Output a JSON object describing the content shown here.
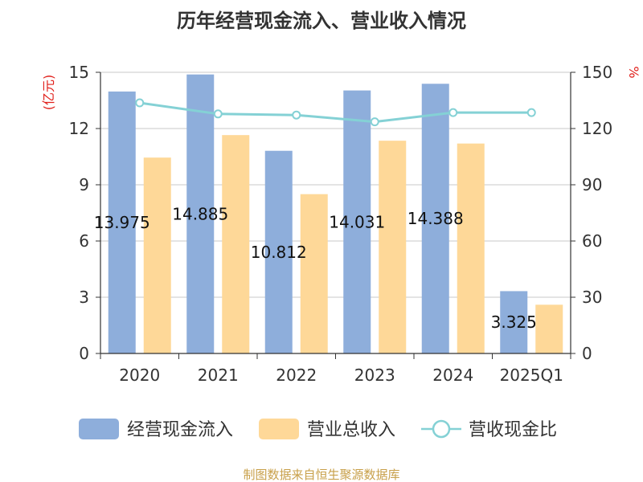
{
  "chart_data": {
    "type": "bar",
    "title": "历年经营现金流入、营业收入情况",
    "categories": [
      "2020",
      "2021",
      "2022",
      "2023",
      "2024",
      "2025Q1"
    ],
    "series": [
      {
        "name": "经营现金流入",
        "axis": "left",
        "color": "#8eaedb",
        "values": [
          13.975,
          14.885,
          10.812,
          14.031,
          14.388,
          3.325
        ]
      },
      {
        "name": "营业总收入",
        "axis": "left",
        "color": "#fed898",
        "values": [
          10.45,
          11.65,
          8.5,
          11.35,
          11.2,
          2.6
        ]
      },
      {
        "name": "营收现金比",
        "axis": "right",
        "type": "line",
        "color": "#84d1d5",
        "values": [
          133.7,
          127.8,
          127.2,
          123.6,
          128.5,
          128.5
        ]
      }
    ],
    "data_labels": [
      "13.975",
      "14.885",
      "10.812",
      "14.031",
      "14.388",
      "3.325"
    ],
    "y_left": {
      "unit": "(亿元)",
      "ylim": [
        0,
        15
      ],
      "ticks": [
        "0",
        "3",
        "6",
        "9",
        "12",
        "15"
      ]
    },
    "y_right": {
      "unit": "%",
      "ylim": [
        0,
        150
      ],
      "ticks": [
        "0",
        "30",
        "60",
        "90",
        "120",
        "150"
      ]
    },
    "grid": true,
    "legend_position": "bottom"
  },
  "source_text": "制图数据来自恒生聚源数据库"
}
